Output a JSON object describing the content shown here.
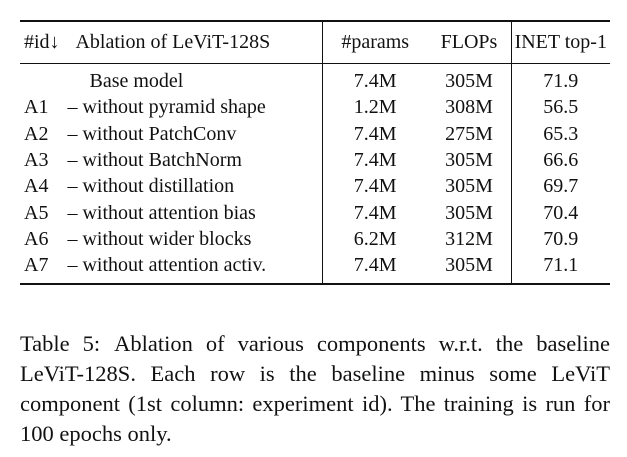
{
  "table": {
    "headers": {
      "id": "#id↓",
      "name": "Ablation of LeViT-128S",
      "params": "#params",
      "flops": "FLOPs",
      "top1": "INET top-1"
    },
    "rows": [
      {
        "id": "",
        "name": "Base model",
        "params": "7.4M",
        "flops": "305M",
        "top1": "71.9"
      },
      {
        "id": "A1",
        "name": "– without pyramid shape",
        "params": "1.2M",
        "flops": "308M",
        "top1": "56.5"
      },
      {
        "id": "A2",
        "name": "– without PatchConv",
        "params": "7.4M",
        "flops": "275M",
        "top1": "65.3"
      },
      {
        "id": "A3",
        "name": "– without BatchNorm",
        "params": "7.4M",
        "flops": "305M",
        "top1": "66.6"
      },
      {
        "id": "A4",
        "name": "– without distillation",
        "params": "7.4M",
        "flops": "305M",
        "top1": "69.7"
      },
      {
        "id": "A5",
        "name": "– without attention bias",
        "params": "7.4M",
        "flops": "305M",
        "top1": "70.4"
      },
      {
        "id": "A6",
        "name": "– without wider blocks",
        "params": "6.2M",
        "flops": "312M",
        "top1": "70.9"
      },
      {
        "id": "A7",
        "name": "– without attention activ.",
        "params": "7.4M",
        "flops": "305M",
        "top1": "71.1"
      }
    ]
  },
  "caption": {
    "label": "Table 5:",
    "text": "Ablation of various components w.r.t. the baseline LeViT-128S. Each row is the baseline minus some LeViT component (1st column: experiment id). The training is run for 100 epochs only."
  }
}
